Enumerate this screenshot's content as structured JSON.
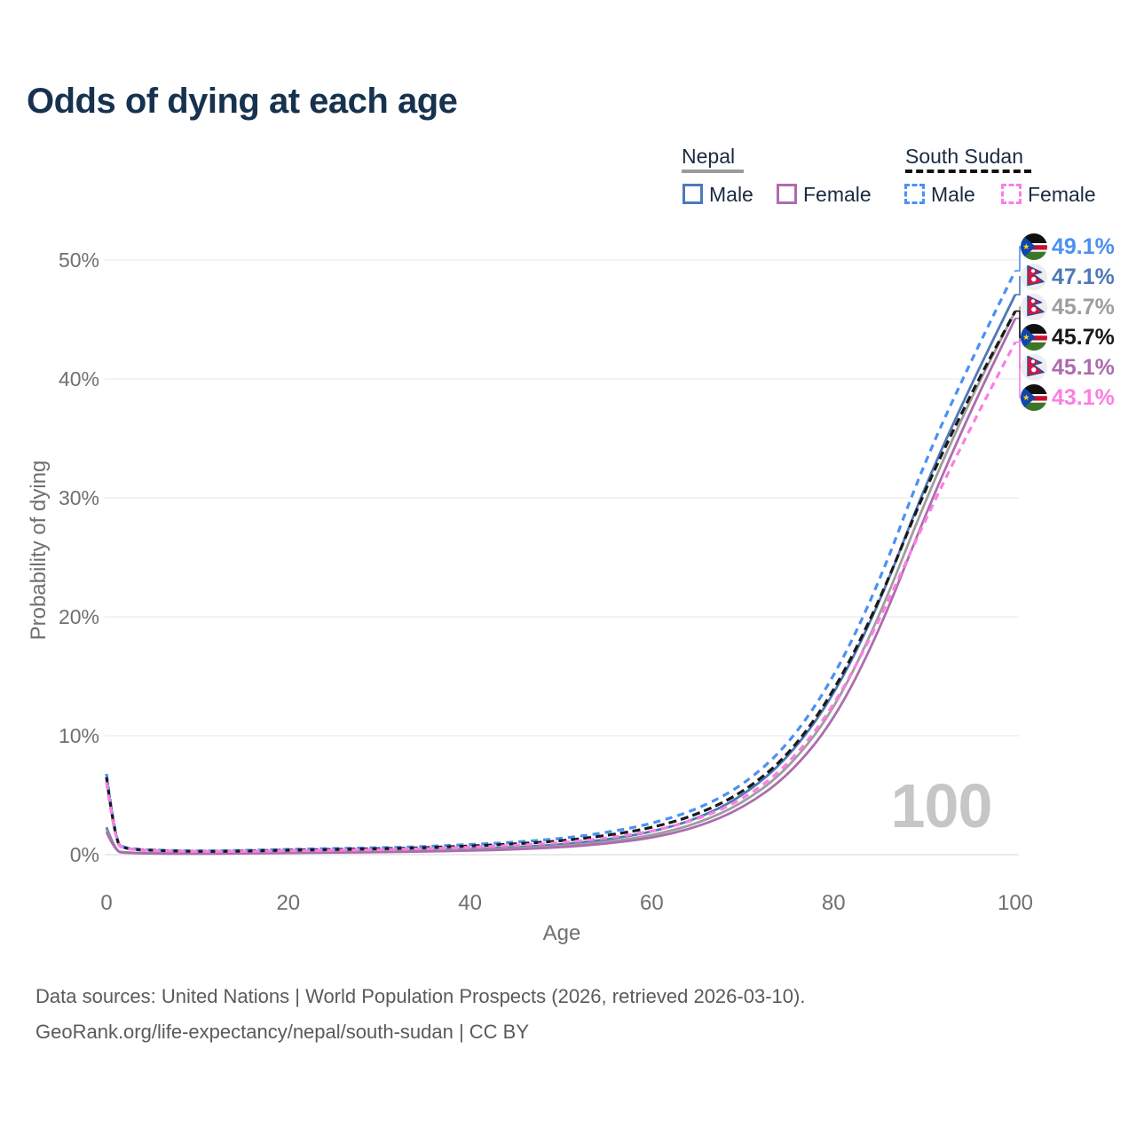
{
  "title": "Odds of dying at each age",
  "legend": {
    "nepal": {
      "label": "Nepal",
      "male_label": "Male",
      "female_label": "Female"
    },
    "south_sudan": {
      "label": "South Sudan",
      "male_label": "Male",
      "female_label": "Female"
    }
  },
  "axes": {
    "x_label": "Age",
    "y_label": "Probability of dying",
    "x_ticks": [
      "0",
      "20",
      "40",
      "60",
      "80",
      "100"
    ],
    "y_ticks": [
      "0%",
      "10%",
      "20%",
      "30%",
      "40%",
      "50%"
    ]
  },
  "watermark": "100",
  "footer": {
    "line1": "Data sources: United Nations | World Population Prospects (2026, retrieved 2026-03-10).",
    "line2": "GeoRank.org/life-expectancy/nepal/south-sudan | CC BY"
  },
  "colors": {
    "nepal_male": "#4e79b7",
    "nepal_female": "#ad6cae",
    "nepal_total": "#9e9e9e",
    "south_sudan_male": "#4a90f5",
    "south_sudan_female": "#fc7ee3",
    "south_sudan_total": "#1a1a1a",
    "title": "#16324f",
    "grid": "#ececec",
    "tick": "#707070",
    "watermark": "#c6c6c6",
    "footer": "#5a5a5a"
  },
  "chart_data": {
    "type": "line",
    "title": "Odds of dying at each age",
    "xlabel": "Age",
    "ylabel": "Probability of dying",
    "xlim": [
      0,
      100
    ],
    "ylim_percent": [
      0,
      50
    ],
    "grid": "horizontal",
    "legend_position": "top-right",
    "x": [
      0,
      1,
      2,
      5,
      10,
      15,
      20,
      25,
      30,
      35,
      40,
      45,
      50,
      55,
      60,
      65,
      70,
      75,
      80,
      85,
      90,
      95,
      100
    ],
    "series": [
      {
        "key": "np_male",
        "name": "Nepal Male",
        "country": "Nepal",
        "sex": "Male",
        "style": "solid",
        "color": "#4e79b7",
        "end_label": "47.1%",
        "label_row": 1,
        "values": [
          2.3,
          0.3,
          0.18,
          0.12,
          0.1,
          0.14,
          0.2,
          0.25,
          0.3,
          0.37,
          0.48,
          0.62,
          0.85,
          1.25,
          1.9,
          3.0,
          4.9,
          8.1,
          13.3,
          21.0,
          30.9,
          39.3,
          47.1
        ]
      },
      {
        "key": "np_total",
        "name": "Nepal Both sexes",
        "country": "Nepal",
        "sex": "Both",
        "style": "solid",
        "color": "#9e9e9e",
        "end_label": "45.7%",
        "label_row": 2,
        "values": [
          2.1,
          0.28,
          0.16,
          0.11,
          0.09,
          0.12,
          0.17,
          0.21,
          0.25,
          0.31,
          0.4,
          0.52,
          0.72,
          1.05,
          1.6,
          2.6,
          4.3,
          7.2,
          12.1,
          19.9,
          29.6,
          38.2,
          45.7
        ]
      },
      {
        "key": "np_female",
        "name": "Nepal Female",
        "country": "Nepal",
        "sex": "Female",
        "style": "solid",
        "color": "#ad6cae",
        "end_label": "45.1%",
        "label_row": 4,
        "values": [
          1.9,
          0.26,
          0.15,
          0.1,
          0.08,
          0.1,
          0.14,
          0.17,
          0.21,
          0.26,
          0.34,
          0.44,
          0.62,
          0.92,
          1.4,
          2.3,
          3.9,
          6.6,
          11.2,
          18.7,
          28.4,
          37.2,
          45.1
        ]
      },
      {
        "key": "ss_male",
        "name": "South Sudan Male",
        "country": "South Sudan",
        "sex": "Male",
        "style": "dashed",
        "color": "#4a90f5",
        "end_label": "49.1%",
        "label_row": 0,
        "values": [
          6.8,
          1.0,
          0.55,
          0.38,
          0.3,
          0.35,
          0.45,
          0.52,
          0.58,
          0.68,
          0.85,
          1.05,
          1.35,
          1.85,
          2.6,
          3.8,
          5.8,
          9.2,
          14.8,
          22.8,
          33.0,
          41.3,
          49.1
        ]
      },
      {
        "key": "ss_total",
        "name": "South Sudan Both sexes",
        "country": "South Sudan",
        "sex": "Both",
        "style": "dashed",
        "color": "#1a1a1a",
        "end_label": "45.7%",
        "label_row": 3,
        "values": [
          6.5,
          0.95,
          0.5,
          0.35,
          0.27,
          0.3,
          0.38,
          0.44,
          0.5,
          0.58,
          0.73,
          0.9,
          1.15,
          1.6,
          2.25,
          3.35,
          5.2,
          8.3,
          13.6,
          21.2,
          30.6,
          38.6,
          45.7
        ]
      },
      {
        "key": "ss_female",
        "name": "South Sudan Female",
        "country": "South Sudan",
        "sex": "Female",
        "style": "dashed",
        "color": "#fc7ee3",
        "end_label": "43.1%",
        "label_row": 5,
        "values": [
          6.1,
          0.9,
          0.48,
          0.33,
          0.25,
          0.27,
          0.33,
          0.37,
          0.42,
          0.5,
          0.62,
          0.78,
          1.0,
          1.38,
          1.95,
          2.95,
          4.6,
          7.5,
          12.4,
          19.6,
          28.0,
          35.8,
          43.1
        ]
      }
    ],
    "end_labels": [
      {
        "value": "49.1%",
        "country": "South Sudan",
        "series": "south_sudan_male"
      },
      {
        "value": "47.1%",
        "country": "Nepal",
        "series": "nepal_male"
      },
      {
        "value": "45.7%",
        "country": "Nepal",
        "series": "nepal_total"
      },
      {
        "value": "45.7%",
        "country": "South Sudan",
        "series": "south_sudan_total"
      },
      {
        "value": "45.1%",
        "country": "Nepal",
        "series": "nepal_female"
      },
      {
        "value": "43.1%",
        "country": "South Sudan",
        "series": "south_sudan_female"
      }
    ]
  }
}
